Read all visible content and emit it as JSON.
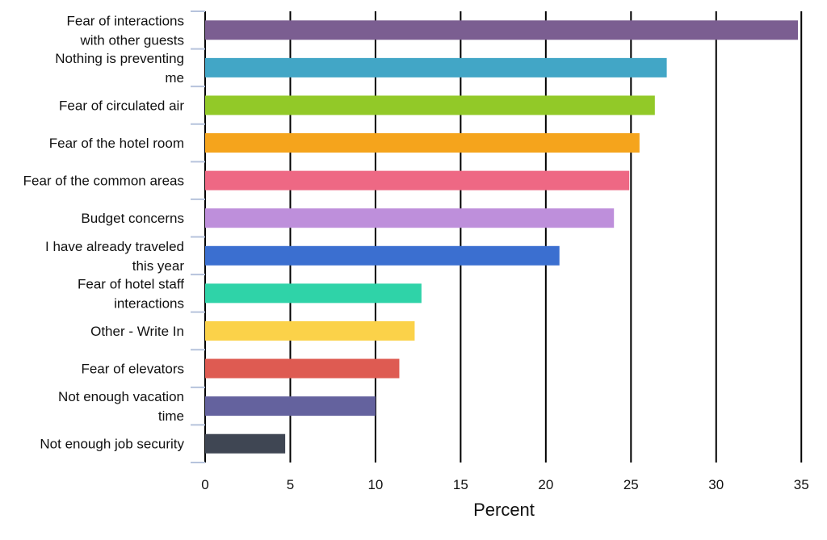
{
  "chart_data": {
    "type": "bar",
    "orientation": "horizontal",
    "categories": [
      [
        "Fear of interactions",
        "with other guests"
      ],
      [
        "Nothing is preventing",
        "me"
      ],
      [
        "Fear of circulated air"
      ],
      [
        "Fear of the hotel room"
      ],
      [
        "Fear of the common areas"
      ],
      [
        "Budget concerns"
      ],
      [
        "I have already traveled",
        "this year"
      ],
      [
        "Fear of hotel staff",
        "interactions"
      ],
      [
        "Other - Write In"
      ],
      [
        "Fear of elevators"
      ],
      [
        "Not enough vacation",
        "time"
      ],
      [
        "Not enough job security"
      ]
    ],
    "values": [
      34.8,
      27.1,
      26.4,
      25.5,
      24.9,
      24.0,
      20.8,
      12.7,
      12.3,
      11.4,
      10.0,
      4.7
    ],
    "colors": [
      "#7b5e91",
      "#42a6c6",
      "#92c928",
      "#f5a41c",
      "#ee6884",
      "#be8fdb",
      "#3b6fd0",
      "#2fd3a8",
      "#fbd249",
      "#de5b52",
      "#64629e",
      "#3f4653"
    ],
    "xlabel": "Percent",
    "ylabel": "",
    "title": "",
    "xlim": [
      0,
      35
    ],
    "xticks": [
      0,
      5,
      10,
      15,
      20,
      25,
      30,
      35
    ],
    "grid": "vertical",
    "gridline_color": "#000000",
    "legend": "none"
  }
}
